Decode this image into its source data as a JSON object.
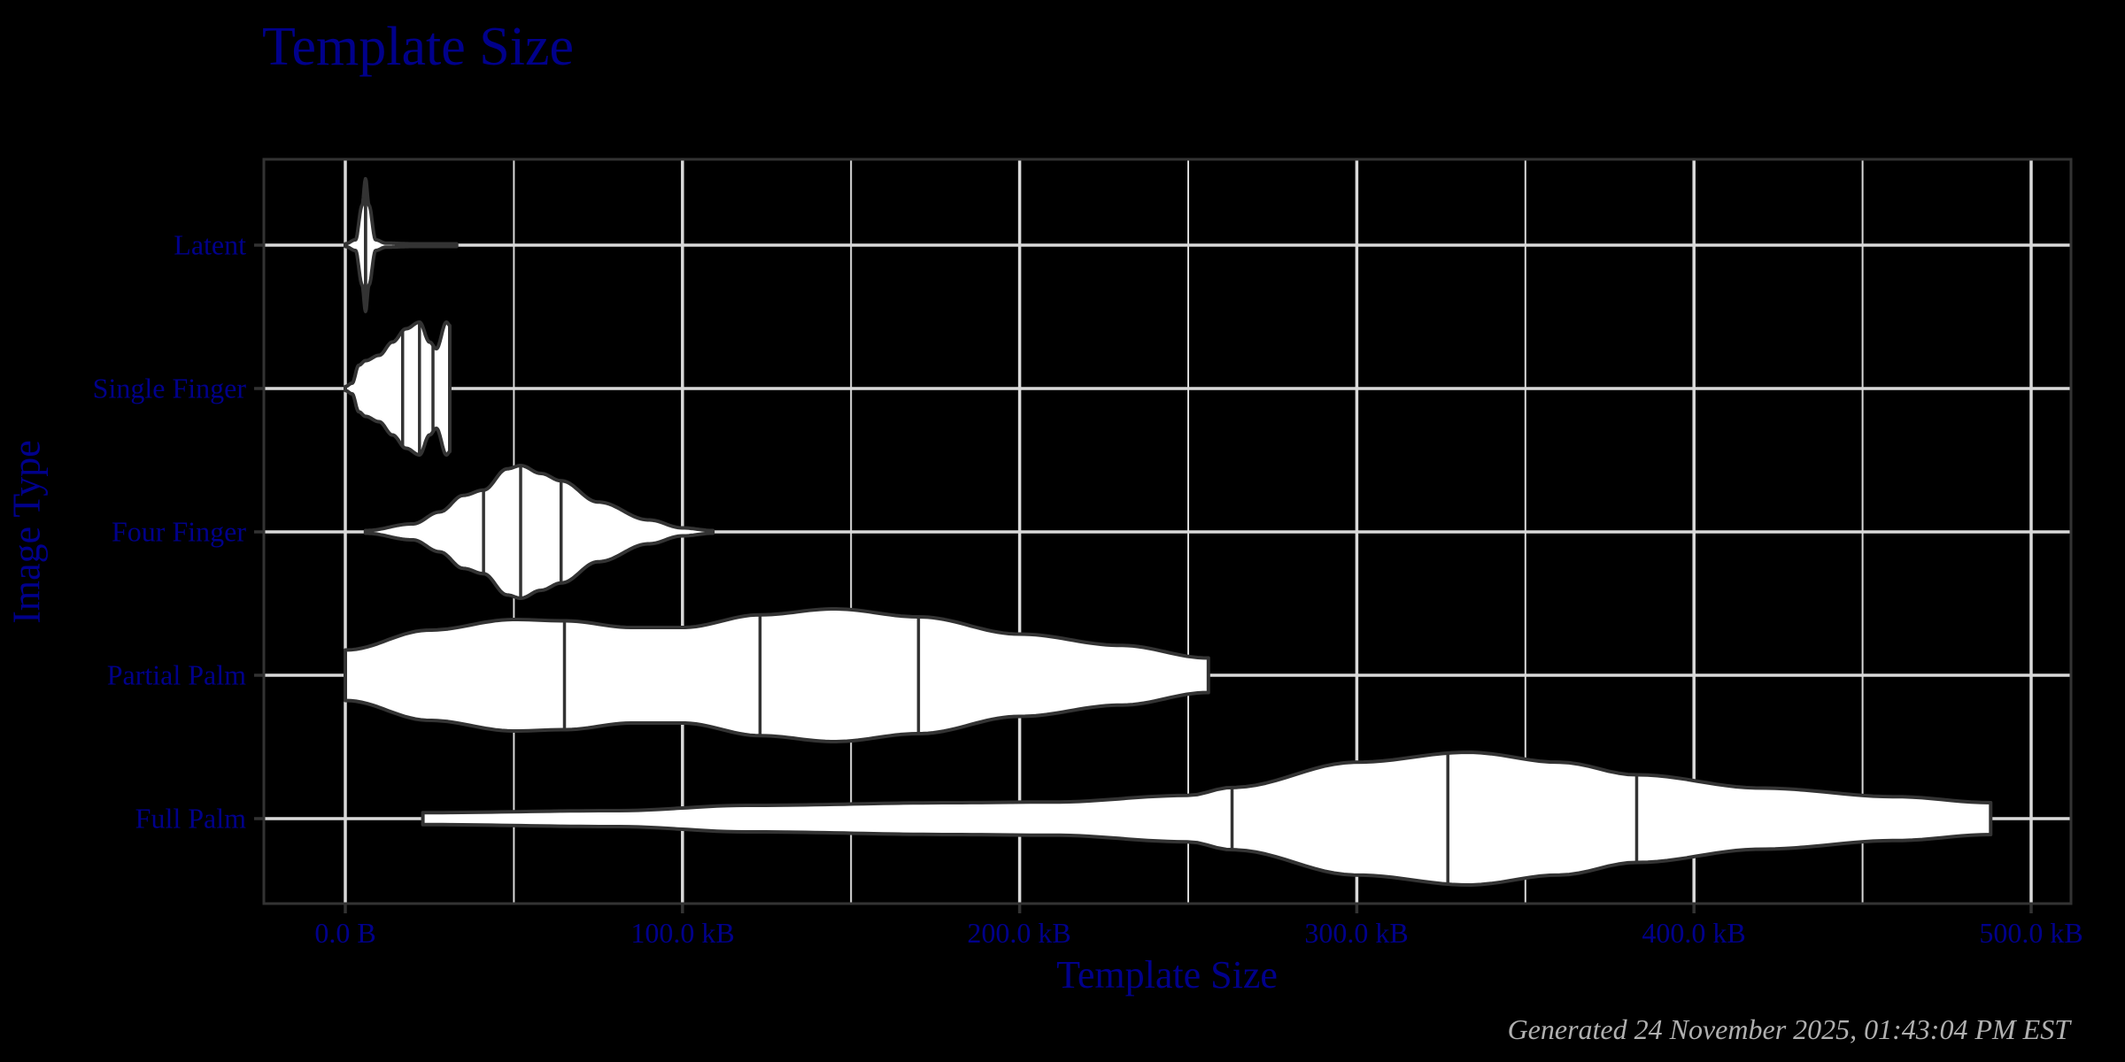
{
  "title": "Template Size",
  "caption": "Generated 24 November 2025, 01:43:04 PM EST",
  "colors": {
    "background": "#000000",
    "text": "#00008B",
    "caption": "#b0b0b0",
    "grid": "#d9d9d9",
    "panel_border": "#333333",
    "violin_fill": "#ffffff",
    "violin_outline": "#333333"
  },
  "axes": {
    "x_title": "Template Size",
    "y_title": "Image Type",
    "x_ticks": [
      "0.0 B",
      "100.0 kB",
      "200.0 kB",
      "300.0 kB",
      "400.0 kB",
      "500.0 kB"
    ],
    "y_ticks": [
      "Latent",
      "Single Finger",
      "Four Finger",
      "Partial Palm",
      "Full Palm"
    ]
  },
  "chart_data": {
    "type": "violin",
    "title": "Template Size",
    "xlabel": "Template Size",
    "ylabel": "Image Type",
    "x_unit": "kB",
    "xlim": [
      -25,
      512
    ],
    "x_ticks": [
      0,
      100,
      200,
      300,
      400,
      500
    ],
    "x_tick_labels": [
      "0.0 B",
      "100.0 kB",
      "200.0 kB",
      "300.0 kB",
      "400.0 kB",
      "500.0 kB"
    ],
    "categories": [
      "Latent",
      "Single Finger",
      "Four Finger",
      "Partial Palm",
      "Full Palm"
    ],
    "draw_quantiles": [
      0.25,
      0.5,
      0.75
    ],
    "grid": true,
    "series": [
      {
        "name": "Latent",
        "min": 0,
        "max": 33,
        "quantiles": [
          6,
          6,
          6
        ],
        "density_profile": [
          [
            0,
            0.02
          ],
          [
            3,
            0.08
          ],
          [
            5,
            0.6
          ],
          [
            6,
            1.0
          ],
          [
            7,
            0.6
          ],
          [
            9,
            0.08
          ],
          [
            12,
            0.03
          ],
          [
            20,
            0.02
          ],
          [
            33,
            0.02
          ]
        ]
      },
      {
        "name": "Single Finger",
        "min": 0,
        "max": 31,
        "quantiles": [
          17,
          22,
          26
        ],
        "density_profile": [
          [
            0,
            0.03
          ],
          [
            2,
            0.08
          ],
          [
            4,
            0.35
          ],
          [
            6,
            0.42
          ],
          [
            10,
            0.5
          ],
          [
            14,
            0.7
          ],
          [
            18,
            0.9
          ],
          [
            22,
            1.0
          ],
          [
            25,
            0.7
          ],
          [
            27,
            0.6
          ],
          [
            30,
            1.0
          ],
          [
            31,
            0.95
          ]
        ]
      },
      {
        "name": "Four Finger",
        "min": 6,
        "max": 109,
        "quantiles": [
          41,
          52,
          64
        ],
        "density_profile": [
          [
            6,
            0.02
          ],
          [
            20,
            0.12
          ],
          [
            28,
            0.3
          ],
          [
            35,
            0.55
          ],
          [
            41,
            0.63
          ],
          [
            48,
            0.95
          ],
          [
            52,
            1.0
          ],
          [
            58,
            0.88
          ],
          [
            64,
            0.77
          ],
          [
            75,
            0.45
          ],
          [
            90,
            0.18
          ],
          [
            100,
            0.06
          ],
          [
            109,
            0.02
          ]
        ]
      },
      {
        "name": "Partial Palm",
        "min": 0,
        "max": 256,
        "quantiles": [
          65,
          123,
          170
        ],
        "density_profile": [
          [
            0,
            0.38
          ],
          [
            25,
            0.68
          ],
          [
            50,
            0.84
          ],
          [
            65,
            0.82
          ],
          [
            85,
            0.72
          ],
          [
            100,
            0.72
          ],
          [
            123,
            0.91
          ],
          [
            145,
            1.0
          ],
          [
            170,
            0.88
          ],
          [
            200,
            0.62
          ],
          [
            230,
            0.45
          ],
          [
            256,
            0.26
          ]
        ]
      },
      {
        "name": "Full Palm",
        "min": 23,
        "max": 488,
        "quantiles": [
          263,
          327,
          383
        ],
        "density_profile": [
          [
            23,
            0.09
          ],
          [
            80,
            0.12
          ],
          [
            120,
            0.2
          ],
          [
            180,
            0.24
          ],
          [
            210,
            0.25
          ],
          [
            250,
            0.35
          ],
          [
            263,
            0.47
          ],
          [
            300,
            0.85
          ],
          [
            333,
            1.0
          ],
          [
            360,
            0.85
          ],
          [
            383,
            0.66
          ],
          [
            420,
            0.46
          ],
          [
            460,
            0.33
          ],
          [
            488,
            0.24
          ]
        ]
      }
    ]
  }
}
